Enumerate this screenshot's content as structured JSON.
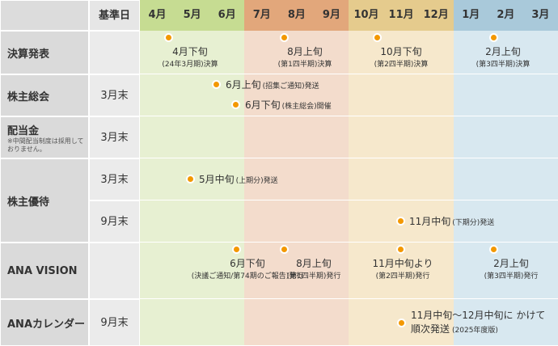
{
  "header": {
    "label": "",
    "base": "基準日",
    "months": [
      "4月",
      "5月",
      "6月",
      "7月",
      "8月",
      "9月",
      "10月",
      "11月",
      "12月",
      "1月",
      "2月",
      "3月"
    ]
  },
  "rows": [
    {
      "label": "決算発表",
      "lines": [
        {
          "events": [
            {
              "main": "4月下旬",
              "sub": "(24年3月期)決算"
            },
            {
              "main": "8月上旬",
              "sub": "(第1四半期)決算"
            },
            {
              "main": "10月下旬",
              "sub": "(第2四半期)決算"
            },
            {
              "main": "2月上旬",
              "sub": "(第3四半期)決算"
            }
          ]
        }
      ]
    },
    {
      "label": "株主総会",
      "lines": [
        {
          "base": "3月末",
          "events": [
            {
              "main": "6月上旬",
              "sub": "(招集ご通知)発送"
            },
            {
              "main": "6月下旬",
              "sub": "(株主総会)開催"
            }
          ]
        }
      ]
    },
    {
      "label": "配当金",
      "note": "※中間配当制度は採用しておりません。",
      "lines": [
        {
          "base": "3月末",
          "events": []
        }
      ]
    },
    {
      "label": "株主優待",
      "lines": [
        {
          "base": "3月末",
          "events": [
            {
              "main": "5月中旬",
              "sub": "(上期分)発送"
            }
          ]
        },
        {
          "base": "9月末",
          "events": [
            {
              "main": "11月中旬",
              "sub": "(下期分)発送"
            }
          ]
        }
      ]
    },
    {
      "label": "ANA VISION",
      "lines": [
        {
          "events": [
            {
              "main": "6月下旬",
              "sub": "(決議ご通知/第74期のご報告)発行"
            },
            {
              "main": "8月上旬",
              "sub": "(第1四半期)発行"
            },
            {
              "main": "11月中旬より",
              "sub": "(第2四半期)発行"
            },
            {
              "main": "2月上旬",
              "sub": "(第3四半期)発行"
            }
          ]
        }
      ]
    },
    {
      "label": "ANAカレンダー",
      "lines": [
        {
          "base": "9月末",
          "events": [
            {
              "main": "11月中旬～12月中旬に かけて順次発送",
              "sub": "(2025年度版)"
            }
          ]
        }
      ]
    }
  ]
}
